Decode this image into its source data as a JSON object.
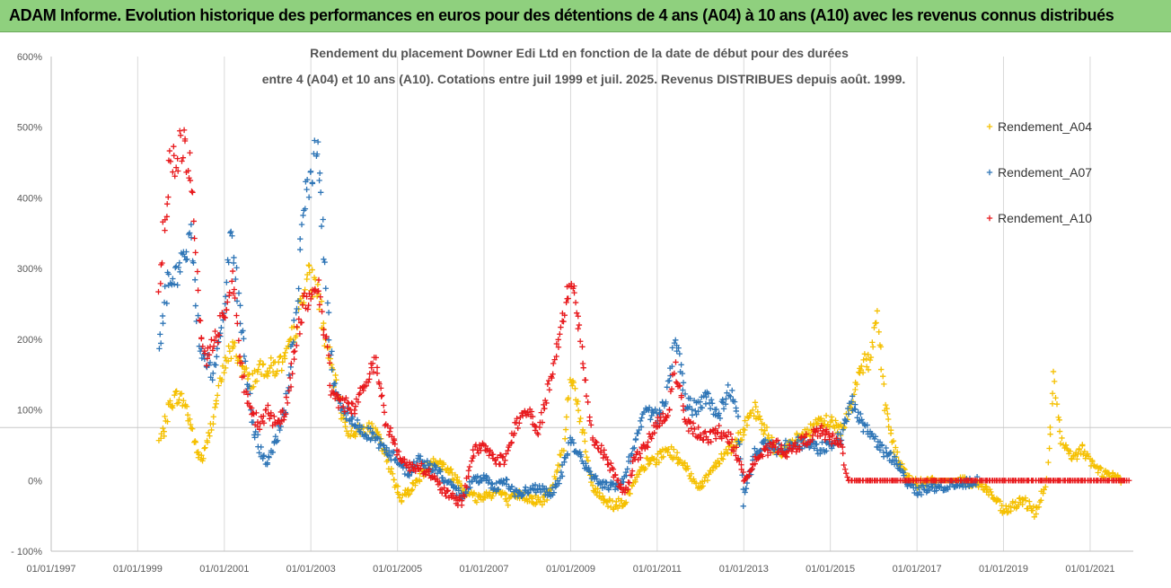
{
  "header": {
    "title": "ADAM Informe. Evolution historique des performances en euros pour des détentions de 4 ans (A04) à 10 ans (A10) avec les revenus connus distribués"
  },
  "chart_data": {
    "type": "scatter",
    "subtitle_line1": "Rendement du placement Downer Edi Ltd en fonction de la date de début pour des durées",
    "subtitle_line2": "entre 4 (A04) et 10 ans (A10). Cotations entre juil 1999 et juil. 2025. Revenus DISTRIBUES depuis août. 1999.",
    "x_axis": {
      "type": "date",
      "range": [
        "1997-01-01",
        "2021-12-31"
      ],
      "tick_labels": [
        "01/01/1997",
        "01/01/1999",
        "01/01/2001",
        "01/01/2003",
        "01/01/2005",
        "01/01/2007",
        "01/01/2009",
        "01/01/2011",
        "01/01/2013",
        "01/01/2015",
        "01/01/2017",
        "01/01/2019",
        "01/01/2021"
      ],
      "grid": true
    },
    "y_axis": {
      "range": [
        -100,
        600
      ],
      "unit": "%",
      "tick_labels": [
        "- 100%",
        "0%",
        "100%",
        "200%",
        "300%",
        "400%",
        "500%",
        "600%"
      ],
      "grid": false
    },
    "reference_line": 75,
    "legend": {
      "position": "right",
      "marker": "+"
    },
    "series": [
      {
        "name": "Rendement_A04",
        "color": "#f5c000",
        "points": [
          [
            "1999-07-01",
            55
          ],
          [
            "1999-08-15",
            75
          ],
          [
            "1999-10-01",
            110
          ],
          [
            "1999-12-01",
            120
          ],
          [
            "2000-02-01",
            110
          ],
          [
            "2000-04-01",
            75
          ],
          [
            "2000-05-15",
            40
          ],
          [
            "2000-07-01",
            30
          ],
          [
            "2000-08-15",
            55
          ],
          [
            "2000-10-01",
            95
          ],
          [
            "2000-12-01",
            140
          ],
          [
            "2001-02-01",
            180
          ],
          [
            "2001-04-01",
            185
          ],
          [
            "2001-06-01",
            160
          ],
          [
            "2001-08-01",
            140
          ],
          [
            "2001-10-01",
            150
          ],
          [
            "2001-12-01",
            160
          ],
          [
            "2002-03-01",
            160
          ],
          [
            "2002-06-01",
            170
          ],
          [
            "2002-09-01",
            220
          ],
          [
            "2002-12-01",
            290
          ],
          [
            "2003-03-01",
            270
          ],
          [
            "2003-05-01",
            200
          ],
          [
            "2003-08-01",
            130
          ],
          [
            "2003-11-01",
            70
          ],
          [
            "2004-02-01",
            70
          ],
          [
            "2004-05-01",
            75
          ],
          [
            "2004-08-01",
            60
          ],
          [
            "2004-11-01",
            15
          ],
          [
            "2005-02-01",
            -25
          ],
          [
            "2005-05-01",
            -10
          ],
          [
            "2005-08-01",
            10
          ],
          [
            "2005-11-01",
            30
          ],
          [
            "2006-02-01",
            20
          ],
          [
            "2006-05-01",
            5
          ],
          [
            "2006-08-01",
            -15
          ],
          [
            "2006-11-01",
            -25
          ],
          [
            "2007-02-01",
            -20
          ],
          [
            "2007-05-01",
            -15
          ],
          [
            "2007-08-01",
            -30
          ],
          [
            "2007-11-01",
            -20
          ],
          [
            "2008-02-01",
            -25
          ],
          [
            "2008-05-01",
            -30
          ],
          [
            "2008-08-01",
            -10
          ],
          [
            "2008-11-01",
            50
          ],
          [
            "2009-01-01",
            150
          ],
          [
            "2009-03-01",
            110
          ],
          [
            "2009-05-01",
            50
          ],
          [
            "2009-07-01",
            -10
          ],
          [
            "2009-10-01",
            -25
          ],
          [
            "2010-01-01",
            -35
          ],
          [
            "2010-04-01",
            -30
          ],
          [
            "2010-07-01",
            0
          ],
          [
            "2010-10-01",
            25
          ],
          [
            "2011-01-01",
            30
          ],
          [
            "2011-04-01",
            45
          ],
          [
            "2011-07-01",
            30
          ],
          [
            "2011-10-01",
            10
          ],
          [
            "2012-01-01",
            -10
          ],
          [
            "2012-04-01",
            15
          ],
          [
            "2012-07-01",
            35
          ],
          [
            "2012-10-01",
            50
          ],
          [
            "2013-01-01",
            70
          ],
          [
            "2013-04-01",
            100
          ],
          [
            "2013-07-01",
            70
          ],
          [
            "2013-10-01",
            40
          ],
          [
            "2014-01-01",
            45
          ],
          [
            "2014-04-01",
            60
          ],
          [
            "2014-07-01",
            70
          ],
          [
            "2014-10-01",
            80
          ],
          [
            "2015-01-01",
            85
          ],
          [
            "2015-04-01",
            70
          ],
          [
            "2015-07-01",
            110
          ],
          [
            "2015-09-01",
            160
          ],
          [
            "2015-12-01",
            170
          ],
          [
            "2016-02-01",
            240
          ],
          [
            "2016-04-01",
            110
          ],
          [
            "2016-07-01",
            40
          ],
          [
            "2016-10-01",
            5
          ],
          [
            "2017-01-01",
            -5
          ],
          [
            "2017-06-01",
            0
          ],
          [
            "2018-01-01",
            0
          ],
          [
            "2018-06-01",
            -5
          ],
          [
            "2018-09-01",
            -15
          ],
          [
            "2019-01-01",
            -45
          ],
          [
            "2019-04-01",
            -35
          ],
          [
            "2019-07-01",
            -30
          ],
          [
            "2019-10-01",
            -45
          ],
          [
            "2020-01-01",
            0
          ],
          [
            "2020-03-01",
            145
          ],
          [
            "2020-05-01",
            55
          ],
          [
            "2020-08-01",
            30
          ],
          [
            "2020-11-01",
            45
          ],
          [
            "2021-02-01",
            20
          ],
          [
            "2021-05-01",
            10
          ],
          [
            "2021-08-01",
            5
          ],
          [
            "2021-10-01",
            0
          ]
        ]
      },
      {
        "name": "Rendement_A07",
        "color": "#2e75b6",
        "points": [
          [
            "1999-07-01",
            180
          ],
          [
            "1999-08-15",
            250
          ],
          [
            "1999-10-01",
            300
          ],
          [
            "1999-12-01",
            290
          ],
          [
            "2000-02-01",
            320
          ],
          [
            "2000-04-01",
            340
          ],
          [
            "2000-06-01",
            200
          ],
          [
            "2000-08-01",
            170
          ],
          [
            "2000-10-01",
            150
          ],
          [
            "2000-12-01",
            200
          ],
          [
            "2001-02-01",
            300
          ],
          [
            "2001-03-01",
            360
          ],
          [
            "2001-05-01",
            250
          ],
          [
            "2001-07-01",
            160
          ],
          [
            "2001-09-01",
            80
          ],
          [
            "2001-11-01",
            40
          ],
          [
            "2002-01-01",
            25
          ],
          [
            "2002-03-01",
            50
          ],
          [
            "2002-06-01",
            100
          ],
          [
            "2002-09-01",
            250
          ],
          [
            "2002-11-01",
            380
          ],
          [
            "2003-01-01",
            440
          ],
          [
            "2003-03-01",
            470
          ],
          [
            "2003-05-01",
            300
          ],
          [
            "2003-07-01",
            150
          ],
          [
            "2003-10-01",
            100
          ],
          [
            "2004-01-01",
            80
          ],
          [
            "2004-04-01",
            70
          ],
          [
            "2004-07-01",
            60
          ],
          [
            "2004-10-01",
            40
          ],
          [
            "2005-01-01",
            30
          ],
          [
            "2005-04-01",
            10
          ],
          [
            "2005-07-01",
            30
          ],
          [
            "2005-10-01",
            20
          ],
          [
            "2006-01-01",
            10
          ],
          [
            "2006-04-01",
            -10
          ],
          [
            "2006-07-01",
            -20
          ],
          [
            "2006-10-01",
            0
          ],
          [
            "2007-01-01",
            5
          ],
          [
            "2007-04-01",
            -10
          ],
          [
            "2007-07-01",
            0
          ],
          [
            "2007-10-01",
            -20
          ],
          [
            "2008-01-01",
            -15
          ],
          [
            "2008-04-01",
            -10
          ],
          [
            "2008-07-01",
            -20
          ],
          [
            "2008-10-01",
            0
          ],
          [
            "2009-01-01",
            60
          ],
          [
            "2009-04-01",
            30
          ],
          [
            "2009-07-01",
            5
          ],
          [
            "2009-10-01",
            -5
          ],
          [
            "2010-01-01",
            -10
          ],
          [
            "2010-04-01",
            0
          ],
          [
            "2010-07-01",
            60
          ],
          [
            "2010-10-01",
            100
          ],
          [
            "2011-01-01",
            90
          ],
          [
            "2011-04-01",
            130
          ],
          [
            "2011-06-01",
            200
          ],
          [
            "2011-09-01",
            110
          ],
          [
            "2011-12-01",
            100
          ],
          [
            "2012-03-01",
            120
          ],
          [
            "2012-06-01",
            90
          ],
          [
            "2012-09-01",
            130
          ],
          [
            "2012-11-01",
            100
          ],
          [
            "2013-01-01",
            -30
          ],
          [
            "2013-04-01",
            40
          ],
          [
            "2013-07-01",
            50
          ],
          [
            "2013-10-01",
            45
          ],
          [
            "2014-01-01",
            50
          ],
          [
            "2014-04-01",
            55
          ],
          [
            "2014-07-01",
            50
          ],
          [
            "2014-10-01",
            45
          ],
          [
            "2015-01-01",
            50
          ],
          [
            "2015-04-01",
            60
          ],
          [
            "2015-07-01",
            110
          ],
          [
            "2015-10-01",
            80
          ],
          [
            "2016-01-01",
            60
          ],
          [
            "2016-04-01",
            40
          ],
          [
            "2016-07-01",
            30
          ],
          [
            "2016-10-01",
            0
          ],
          [
            "2017-01-01",
            -15
          ],
          [
            "2017-06-01",
            -10
          ],
          [
            "2018-01-01",
            -5
          ],
          [
            "2018-06-01",
            0
          ]
        ]
      },
      {
        "name": "Rendement_A10",
        "color": "#e8191c",
        "points": [
          [
            "1999-07-01",
            280
          ],
          [
            "1999-08-15",
            360
          ],
          [
            "1999-10-01",
            440
          ],
          [
            "1999-12-01",
            460
          ],
          [
            "2000-02-01",
            480
          ],
          [
            "2000-04-01",
            420
          ],
          [
            "2000-06-01",
            230
          ],
          [
            "2000-08-01",
            170
          ],
          [
            "2000-10-01",
            200
          ],
          [
            "2000-12-01",
            220
          ],
          [
            "2001-02-01",
            250
          ],
          [
            "2001-03-01",
            300
          ],
          [
            "2001-05-01",
            200
          ],
          [
            "2001-07-01",
            120
          ],
          [
            "2001-09-01",
            90
          ],
          [
            "2001-11-01",
            80
          ],
          [
            "2002-01-01",
            100
          ],
          [
            "2002-03-01",
            80
          ],
          [
            "2002-06-01",
            100
          ],
          [
            "2002-09-01",
            200
          ],
          [
            "2002-11-01",
            250
          ],
          [
            "2003-01-01",
            260
          ],
          [
            "2003-03-01",
            280
          ],
          [
            "2003-05-01",
            200
          ],
          [
            "2003-07-01",
            120
          ],
          [
            "2003-10-01",
            110
          ],
          [
            "2004-01-01",
            100
          ],
          [
            "2004-04-01",
            140
          ],
          [
            "2004-07-01",
            170
          ],
          [
            "2004-10-01",
            80
          ],
          [
            "2005-01-01",
            40
          ],
          [
            "2005-04-01",
            20
          ],
          [
            "2005-07-01",
            20
          ],
          [
            "2005-10-01",
            10
          ],
          [
            "2006-01-01",
            -10
          ],
          [
            "2006-04-01",
            -25
          ],
          [
            "2006-07-01",
            -30
          ],
          [
            "2006-10-01",
            40
          ],
          [
            "2007-01-01",
            50
          ],
          [
            "2007-04-01",
            30
          ],
          [
            "2007-07-01",
            30
          ],
          [
            "2007-10-01",
            80
          ],
          [
            "2008-01-01",
            100
          ],
          [
            "2008-04-01",
            70
          ],
          [
            "2008-07-01",
            130
          ],
          [
            "2008-10-01",
            200
          ],
          [
            "2009-01-01",
            290
          ],
          [
            "2009-03-01",
            230
          ],
          [
            "2009-05-01",
            150
          ],
          [
            "2009-07-01",
            60
          ],
          [
            "2009-10-01",
            40
          ],
          [
            "2010-01-01",
            10
          ],
          [
            "2010-04-01",
            -20
          ],
          [
            "2010-07-01",
            30
          ],
          [
            "2010-10-01",
            50
          ],
          [
            "2011-01-01",
            80
          ],
          [
            "2011-04-01",
            90
          ],
          [
            "2011-06-01",
            160
          ],
          [
            "2011-09-01",
            80
          ],
          [
            "2011-12-01",
            70
          ],
          [
            "2012-03-01",
            60
          ],
          [
            "2012-06-01",
            70
          ],
          [
            "2012-09-01",
            60
          ],
          [
            "2012-11-01",
            40
          ],
          [
            "2013-01-01",
            0
          ],
          [
            "2013-04-01",
            30
          ],
          [
            "2013-07-01",
            40
          ],
          [
            "2013-10-01",
            50
          ],
          [
            "2014-01-01",
            40
          ],
          [
            "2014-04-01",
            50
          ],
          [
            "2014-07-01",
            60
          ],
          [
            "2014-10-01",
            70
          ],
          [
            "2015-01-01",
            60
          ],
          [
            "2015-04-01",
            50
          ],
          [
            "2015-06-01",
            0
          ],
          [
            "2016-01-01",
            0
          ],
          [
            "2017-01-01",
            0
          ],
          [
            "2018-01-01",
            0
          ],
          [
            "2019-01-01",
            0
          ],
          [
            "2020-01-01",
            0
          ],
          [
            "2021-01-01",
            0
          ],
          [
            "2021-12-01",
            0
          ]
        ]
      }
    ]
  }
}
